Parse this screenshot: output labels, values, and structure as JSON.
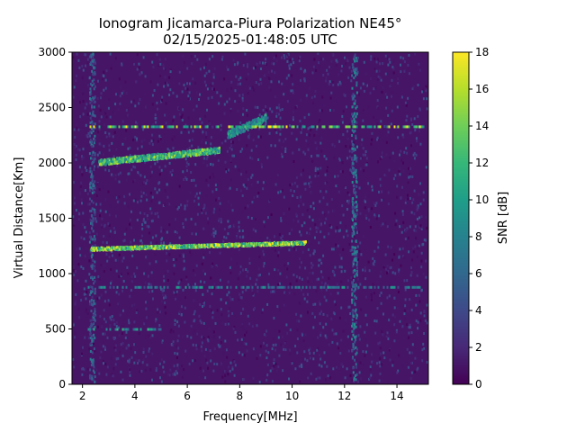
{
  "chart_data": {
    "type": "heatmap",
    "title": "Ionogram Jicamarca-Piura Polarization NE45°",
    "subtitle": "02/15/2025-01:48:05 UTC",
    "xlabel": "Frequency[MHz]",
    "ylabel": "Virtual Distance[Km]",
    "colorbar_label": "SNR [dB]",
    "xlim": [
      1.6,
      15.2
    ],
    "ylim": [
      0,
      3000
    ],
    "clim": [
      0,
      18
    ],
    "colormap": "viridis",
    "x_ticks": [
      2,
      4,
      6,
      8,
      10,
      12,
      14
    ],
    "y_ticks": [
      0,
      500,
      1000,
      1500,
      2000,
      2500,
      3000
    ],
    "colorbar_ticks": [
      0,
      2,
      4,
      6,
      8,
      10,
      12,
      14,
      16,
      18
    ],
    "background_snr": 1,
    "echo_traces": [
      {
        "f_start": 2.3,
        "f_end": 10.5,
        "range_start_km": 1220,
        "range_end_km": 1300,
        "snr_db": 16
      },
      {
        "f_start": 2.6,
        "f_end": 7.2,
        "range_start_km": 1990,
        "range_end_km": 2150,
        "snr_db": 14
      },
      {
        "f_start": 7.5,
        "f_end": 9.0,
        "range_start_km": 2230,
        "range_end_km": 2450,
        "snr_db": 10
      }
    ],
    "interference_lines": [
      {
        "range_km": 2330,
        "f_start": 2.2,
        "f_end": 15.0,
        "snr_db": 17
      },
      {
        "range_km": 880,
        "f_start": 2.2,
        "f_end": 15.0,
        "snr_db": 9
      },
      {
        "range_km": 500,
        "f_start": 2.2,
        "f_end": 5.2,
        "snr_db": 11
      }
    ],
    "interference_bands": [
      {
        "f_center": 2.35,
        "snr_db": 5
      },
      {
        "f_center": 12.35,
        "snr_db": 6
      }
    ]
  }
}
